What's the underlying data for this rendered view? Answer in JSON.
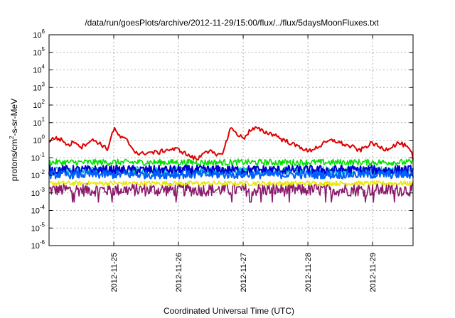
{
  "chart_data": {
    "type": "line",
    "title": "/data/run/goesPlots/archive/2012-11-29/15:00/flux/../flux/5daysMoonFluxes.txt",
    "xlabel": "Coordinated Universal Time (UTC)",
    "ylabel": "protons/cm2-s-sr-MeV",
    "ylabel_parts": {
      "pre": "protons/cm",
      "sup": "2",
      "post": "-s-sr-MeV"
    },
    "y_scale": "log",
    "ylim": [
      1e-06,
      1000000.0
    ],
    "y_ticks": [
      {
        "exp": -6,
        "base": "10",
        "sup": "-6"
      },
      {
        "exp": -5,
        "base": "10",
        "sup": "-5"
      },
      {
        "exp": -4,
        "base": "10",
        "sup": "-4"
      },
      {
        "exp": -3,
        "base": "10",
        "sup": "-3"
      },
      {
        "exp": -2,
        "base": "10",
        "sup": "-2"
      },
      {
        "exp": -1,
        "base": "10",
        "sup": "-1"
      },
      {
        "exp": 0,
        "base": "10",
        "sup": "0"
      },
      {
        "exp": 1,
        "base": "10",
        "sup": "1"
      },
      {
        "exp": 2,
        "base": "10",
        "sup": "2"
      },
      {
        "exp": 3,
        "base": "10",
        "sup": "3"
      },
      {
        "exp": 4,
        "base": "10",
        "sup": "4"
      },
      {
        "exp": 5,
        "base": "10",
        "sup": "5"
      },
      {
        "exp": 6,
        "base": "10",
        "sup": "6"
      }
    ],
    "xlim": [
      "2012-11-24 00:00",
      "2012-11-29 15:00"
    ],
    "x_ticks": [
      "2012-11-25",
      "2012-11-26",
      "2012-11-27",
      "2012-11-28",
      "2012-11-29"
    ],
    "grid": true,
    "legend": "none",
    "series": [
      {
        "color": "#e00000",
        "x_days": [
          0,
          0.1,
          0.2,
          0.3,
          0.4,
          0.5,
          0.6,
          0.7,
          0.8,
          0.9,
          1.0,
          1.1,
          1.2,
          1.3,
          1.4,
          1.5,
          1.6,
          1.7,
          1.8,
          1.9,
          2.0,
          2.1,
          2.2,
          2.3,
          2.4,
          2.5,
          2.6,
          2.7,
          2.8,
          2.9,
          3.0,
          3.1,
          3.2,
          3.3,
          3.4,
          3.5,
          3.6,
          3.7,
          3.8,
          3.9,
          4.0,
          4.1,
          4.2,
          4.3,
          4.4,
          4.5,
          4.6,
          4.7,
          4.8,
          4.9,
          5.0,
          5.1,
          5.2,
          5.3,
          5.4,
          5.5,
          5.6,
          5.625
        ],
        "values": [
          0.9,
          1.4,
          1.0,
          0.5,
          0.9,
          0.4,
          0.8,
          1.0,
          0.6,
          0.3,
          4.5,
          1.5,
          1.0,
          0.3,
          0.15,
          0.2,
          0.2,
          0.2,
          0.28,
          0.3,
          0.3,
          0.18,
          0.11,
          0.08,
          0.25,
          0.22,
          0.12,
          0.25,
          5.0,
          2.5,
          1.2,
          3.5,
          4.8,
          3.2,
          2.5,
          2.0,
          1.1,
          0.8,
          0.5,
          0.4,
          0.22,
          0.35,
          0.5,
          0.8,
          1.0,
          0.7,
          0.5,
          0.4,
          0.25,
          0.45,
          0.7,
          0.4,
          0.3,
          0.45,
          0.7,
          0.5,
          0.2,
          0.08
        ]
      },
      {
        "color": "#00e000",
        "values_mean": 0.055,
        "description_values": [
          0.04,
          0.1
        ]
      },
      {
        "color": "#00c0c0",
        "values_mean": 0.018,
        "description_values": [
          0.01,
          0.035
        ]
      },
      {
        "color": "#0000d0",
        "values_mean": 0.02,
        "description_values": [
          0.01,
          0.04
        ]
      },
      {
        "color": "#0060ff",
        "values_mean": 0.011,
        "description_values": [
          0.006,
          0.02
        ]
      },
      {
        "color": "#e8e800",
        "values_mean": 0.0035,
        "description_values": [
          0.0025,
          0.005
        ]
      },
      {
        "color": "#8b1a6b",
        "values_mean": 0.0015,
        "description_values": [
          0.0003,
          0.002
        ]
      }
    ]
  }
}
